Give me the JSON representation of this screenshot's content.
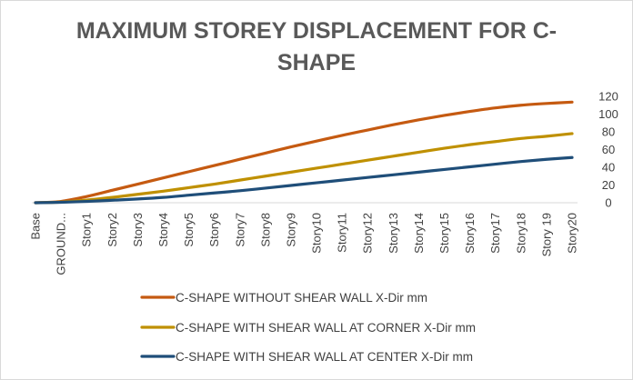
{
  "chart_data": {
    "type": "line",
    "title_lines": [
      "MAXIMUM STOREY DISPLACEMENT FOR C-",
      "SHAPE"
    ],
    "categories": [
      "Base",
      "GROUND...",
      "Story1",
      "Story2",
      "Story3",
      "Story4",
      "Story5",
      "Story6",
      "Story7",
      "Story8",
      "Story9",
      "Story10",
      "Story11",
      "Story12",
      "Story13",
      "Story14",
      "Story15",
      "Story16",
      "Story17",
      "Story18",
      "Story 19",
      "Story20"
    ],
    "y_axis": {
      "position": "right",
      "min": 0,
      "max": 120,
      "step": 20,
      "ticks": [
        "0",
        "20",
        "40",
        "60",
        "80",
        "100",
        "120"
      ]
    },
    "legend_position": "bottom",
    "series": [
      {
        "name": "C-SHAPE WITHOUT SHEAR WALL X-Dir mm",
        "color": "#c55a11",
        "values": [
          0,
          1.5,
          7,
          14,
          21,
          28,
          35,
          42,
          49,
          56,
          63,
          69.5,
          76,
          82,
          88,
          93.5,
          98.5,
          103,
          107,
          110,
          112,
          113.5
        ]
      },
      {
        "name": "C-SHAPE WITH SHEAR WALL AT CORNER X-Dir mm",
        "color": "#bf9000",
        "values": [
          0,
          0.8,
          3,
          6,
          9.5,
          13,
          17,
          21,
          25.5,
          30,
          34.5,
          39,
          43.5,
          48,
          52.5,
          57,
          61.5,
          65.5,
          69,
          72.5,
          75,
          78
        ]
      },
      {
        "name": "C-SHAPE WITH SHEAR WALL AT CENTER X-Dir mm",
        "color": "#1f4e79",
        "values": [
          0,
          0.5,
          1.5,
          2.8,
          4.2,
          6,
          8.5,
          11,
          13.5,
          16.5,
          19.5,
          22.5,
          25.5,
          28.5,
          31.5,
          34.5,
          37.5,
          40.5,
          43.5,
          46.5,
          49,
          51
        ]
      }
    ]
  }
}
